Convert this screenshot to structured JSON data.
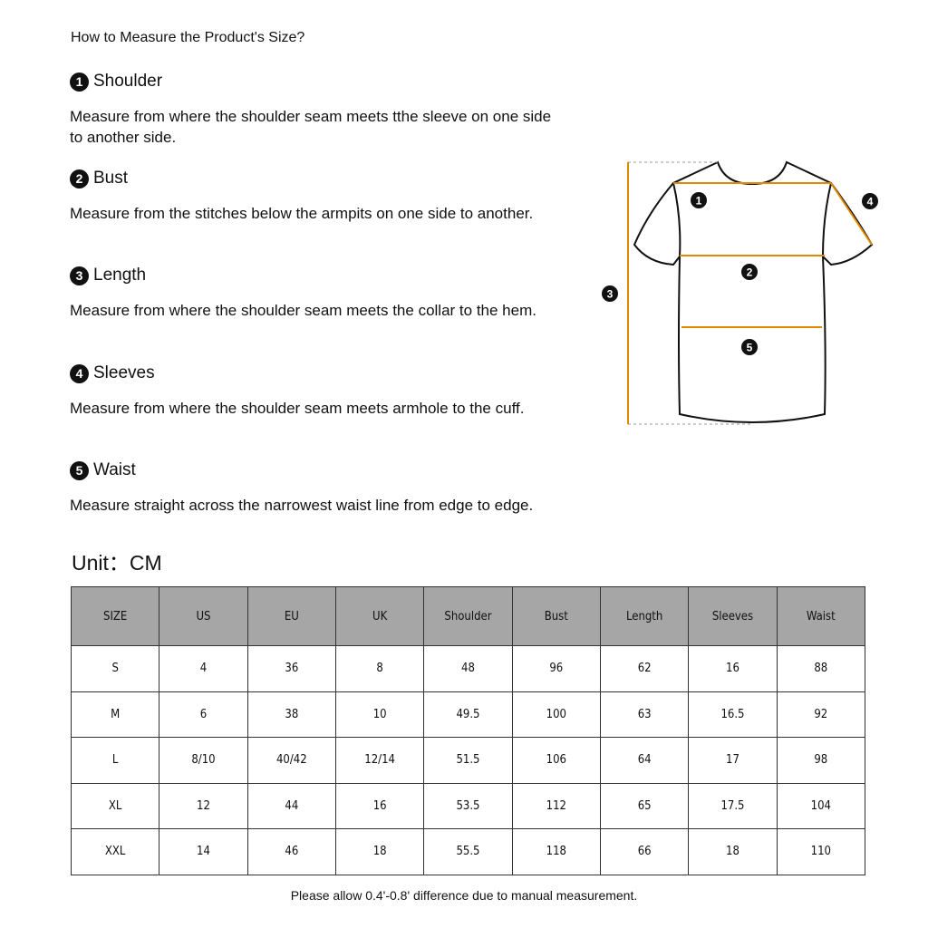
{
  "title": "How to Measure the Product's Size?",
  "sections": [
    {
      "num": "1",
      "heading": "Shoulder",
      "text": "Measure from where the shoulder seam meets tthe sleeve on one side to another side."
    },
    {
      "num": "2",
      "heading": "Bust",
      "text": "Measure from the stitches below the armpits on one side to another."
    },
    {
      "num": "3",
      "heading": "Length",
      "text": "Measure from where the shoulder seam meets the collar to the hem."
    },
    {
      "num": "4",
      "heading": "Sleeves",
      "text": "Measure from where the shoulder seam meets armhole to the cuff."
    },
    {
      "num": "5",
      "heading": "Waist",
      "text": "Measure straight across the narrowest waist line from edge to edge."
    }
  ],
  "diagram": {
    "labels": [
      "1",
      "2",
      "3",
      "4",
      "5"
    ],
    "line_color": "#e08a00",
    "outline_color": "#111111"
  },
  "unit": "Unit：CM",
  "table": {
    "headers": [
      "SIZE",
      "US",
      "EU",
      "UK",
      "Shoulder",
      "Bust",
      "Length",
      "Sleeves",
      "Waist"
    ],
    "rows": [
      [
        "S",
        "4",
        "36",
        "8",
        "48",
        "96",
        "62",
        "16",
        "88"
      ],
      [
        "M",
        "6",
        "38",
        "10",
        "49.5",
        "100",
        "63",
        "16.5",
        "92"
      ],
      [
        "L",
        "8/10",
        "40/42",
        "12/14",
        "51.5",
        "106",
        "64",
        "17",
        "98"
      ],
      [
        "XL",
        "12",
        "44",
        "16",
        "53.5",
        "112",
        "65",
        "17.5",
        "104"
      ],
      [
        "XXL",
        "14",
        "46",
        "18",
        "55.5",
        "118",
        "66",
        "18",
        "110"
      ]
    ],
    "header_bg": "#a6a6a6"
  },
  "note": "Please allow 0.4'-0.8' difference due to manual measurement."
}
